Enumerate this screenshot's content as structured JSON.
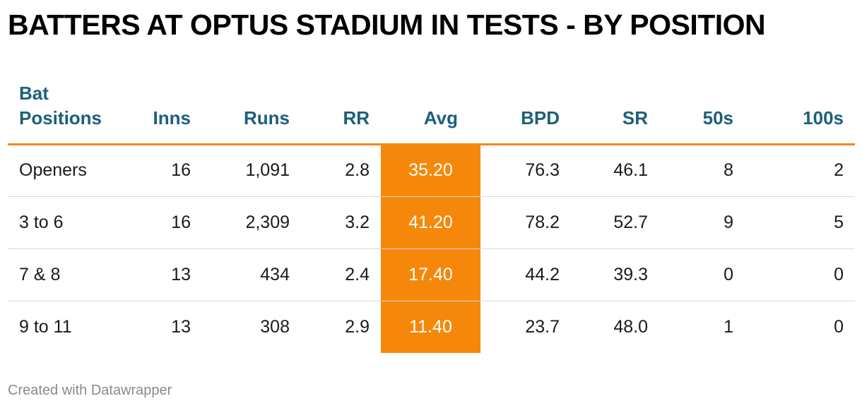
{
  "title": "BATTERS AT OPTUS STADIUM IN TESTS - BY POSITION",
  "credit": "Created with Datawrapper",
  "colors": {
    "header_text": "#1d5f7a",
    "header_rule": "#f0891d",
    "highlight_fill": "#f5880b",
    "highlight_text": "#ffffff"
  },
  "chart_data": {
    "type": "table",
    "columns": [
      "Bat Positions",
      "Inns",
      "Runs",
      "RR",
      "Avg",
      "BPD",
      "SR",
      "50s",
      "100s"
    ],
    "highlighted_column": "Avg",
    "rows": [
      [
        "Openers",
        "16",
        "1,091",
        "2.8",
        "35.20",
        "76.3",
        "46.1",
        "8",
        "2"
      ],
      [
        "3 to 6",
        "16",
        "2,309",
        "3.2",
        "41.20",
        "78.2",
        "52.7",
        "9",
        "5"
      ],
      [
        "7 & 8",
        "13",
        "434",
        "2.4",
        "17.40",
        "44.2",
        "39.3",
        "0",
        "0"
      ],
      [
        "9 to 11",
        "13",
        "308",
        "2.9",
        "11.40",
        "23.7",
        "48.0",
        "1",
        "0"
      ]
    ]
  }
}
